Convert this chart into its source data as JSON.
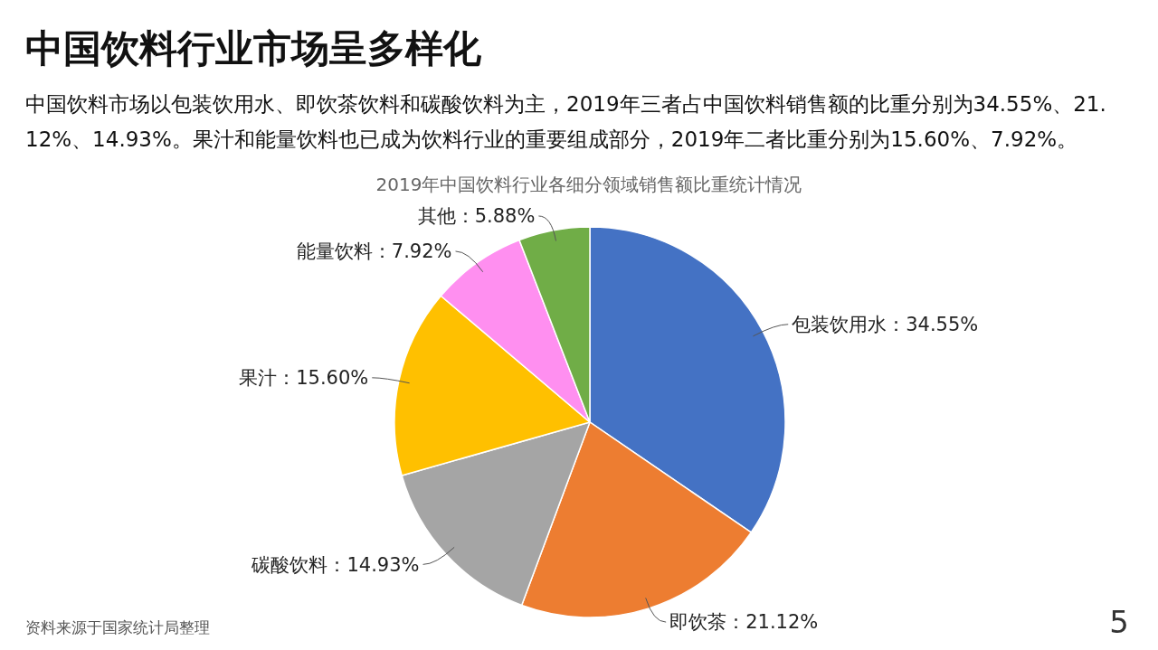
{
  "chart_data": {
    "type": "pie",
    "title": "中国饮料行业市场呈多样化",
    "subtitle": "中国饮料市场以包装饮用水、即饮茶饮料和碳酸饮料为主，2019年三者占中国饮料销售额的比重分别为34.55%、21.12%、14.93%。果汁和能量饮料也已成为饮料行业的重要组成部分，2019年二者比重分别为15.60%、7.92%。",
    "xlabel": "2019年中国饮料行业各细分领域销售额比重统计情况",
    "categories": [
      "包装饮用水",
      "即饮茶",
      "碳酸饮料",
      "果汁",
      "能量饮料",
      "其他"
    ],
    "values": [
      34.55,
      21.12,
      14.93,
      15.6,
      7.92,
      5.88
    ],
    "value_labels": [
      "34.55%",
      "21.12%",
      "14.93%",
      "15.60%",
      "7.92%",
      "5.88%"
    ],
    "colors": [
      "#4472c4",
      "#ed7d31",
      "#a5a5a5",
      "#ffc000",
      "#ff8ff0",
      "#70ad47"
    ],
    "annotations": [
      "资料来源于国家统计局整理",
      "5"
    ],
    "legend": false
  }
}
